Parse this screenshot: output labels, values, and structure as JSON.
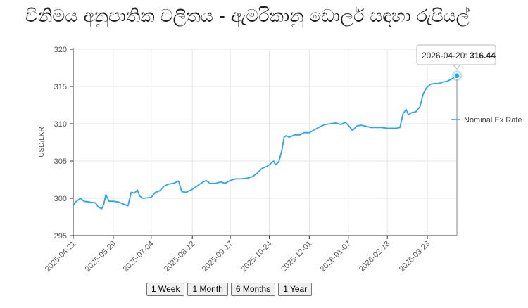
{
  "title": "විනිමය අනුපාතික චලිතය - ඇමරිකානු ඩොලර් සඳහා රුපියල්",
  "range_buttons": [
    "1 Week",
    "1 Month",
    "6 Months",
    "1 Year"
  ],
  "tooltip": {
    "date": "2026-04-20",
    "value": "316.44"
  },
  "colors": {
    "line": "#2ea3f2",
    "grid": "#e6e6e6",
    "axis": "#333333"
  },
  "chart_data": {
    "type": "line",
    "ylabel": "USD/LKR",
    "ylim": [
      295,
      320
    ],
    "yticks": [
      "295",
      "300",
      "305",
      "310",
      "315",
      "320"
    ],
    "xlim": [
      "2025-04-21",
      "2026-04-20"
    ],
    "xticks": [
      "2025-04-21",
      "2025-05-29",
      "2025-07-04",
      "2025-08-12",
      "2025-09-17",
      "2025-10-24",
      "2025-12-01",
      "2026-01-07",
      "2026-02-13",
      "2026-03-23"
    ],
    "grid": true,
    "legend_position": "right",
    "series": [
      {
        "name": "Nominal Ex Rate",
        "points": [
          [
            "2025-04-21",
            299.1
          ],
          [
            "2025-04-24",
            299.6
          ],
          [
            "2025-04-28",
            300.0
          ],
          [
            "2025-05-01",
            299.6
          ],
          [
            "2025-05-06",
            299.5
          ],
          [
            "2025-05-12",
            299.4
          ],
          [
            "2025-05-15",
            298.8
          ],
          [
            "2025-05-18",
            298.6
          ],
          [
            "2025-05-20",
            299.2
          ],
          [
            "2025-05-22",
            300.5
          ],
          [
            "2025-05-25",
            299.6
          ],
          [
            "2025-05-29",
            299.6
          ],
          [
            "2025-06-03",
            299.5
          ],
          [
            "2025-06-08",
            299.2
          ],
          [
            "2025-06-12",
            299.0
          ],
          [
            "2025-06-15",
            300.8
          ],
          [
            "2025-06-18",
            300.7
          ],
          [
            "2025-06-21",
            301.1
          ],
          [
            "2025-06-23",
            300.3
          ],
          [
            "2025-06-26",
            300.0
          ],
          [
            "2025-07-04",
            300.1
          ],
          [
            "2025-07-08",
            300.8
          ],
          [
            "2025-07-12",
            301.0
          ],
          [
            "2025-07-16",
            301.6
          ],
          [
            "2025-07-20",
            301.9
          ],
          [
            "2025-07-25",
            302.0
          ],
          [
            "2025-07-30",
            302.3
          ],
          [
            "2025-08-02",
            300.9
          ],
          [
            "2025-08-06",
            300.8
          ],
          [
            "2025-08-12",
            301.2
          ],
          [
            "2025-08-16",
            301.6
          ],
          [
            "2025-08-20",
            302.0
          ],
          [
            "2025-08-25",
            302.4
          ],
          [
            "2025-08-29",
            302.0
          ],
          [
            "2025-09-03",
            302.0
          ],
          [
            "2025-09-08",
            302.2
          ],
          [
            "2025-09-12",
            302.0
          ],
          [
            "2025-09-17",
            302.4
          ],
          [
            "2025-09-22",
            302.6
          ],
          [
            "2025-09-27",
            302.6
          ],
          [
            "2025-10-03",
            302.7
          ],
          [
            "2025-10-08",
            302.9
          ],
          [
            "2025-10-12",
            303.3
          ],
          [
            "2025-10-17",
            304.0
          ],
          [
            "2025-10-22",
            304.3
          ],
          [
            "2025-10-25",
            304.6
          ],
          [
            "2025-10-28",
            305.0
          ],
          [
            "2025-10-30",
            304.5
          ],
          [
            "2025-11-02",
            304.9
          ],
          [
            "2025-11-05",
            306.5
          ],
          [
            "2025-11-07",
            308.2
          ],
          [
            "2025-11-09",
            308.4
          ],
          [
            "2025-11-12",
            308.2
          ],
          [
            "2025-11-17",
            308.5
          ],
          [
            "2025-11-22",
            308.5
          ],
          [
            "2025-11-26",
            308.8
          ],
          [
            "2025-12-01",
            308.8
          ],
          [
            "2025-12-06",
            309.2
          ],
          [
            "2025-12-11",
            309.6
          ],
          [
            "2025-12-16",
            309.9
          ],
          [
            "2025-12-21",
            310.0
          ],
          [
            "2025-12-26",
            310.1
          ],
          [
            "2025-12-31",
            309.9
          ],
          [
            "2026-01-04",
            310.2
          ],
          [
            "2026-01-07",
            309.8
          ],
          [
            "2026-01-11",
            309.1
          ],
          [
            "2026-01-15",
            309.7
          ],
          [
            "2026-01-19",
            309.8
          ],
          [
            "2026-01-23",
            309.7
          ],
          [
            "2026-01-28",
            309.5
          ],
          [
            "2026-02-02",
            309.5
          ],
          [
            "2026-02-07",
            309.5
          ],
          [
            "2026-02-13",
            309.4
          ],
          [
            "2026-02-18",
            309.4
          ],
          [
            "2026-02-22",
            309.4
          ],
          [
            "2026-02-25",
            309.5
          ],
          [
            "2026-02-28",
            311.4
          ],
          [
            "2026-03-03",
            311.9
          ],
          [
            "2026-03-05",
            311.2
          ],
          [
            "2026-03-08",
            311.5
          ],
          [
            "2026-03-12",
            311.6
          ],
          [
            "2026-03-16",
            312.3
          ],
          [
            "2026-03-19",
            314.0
          ],
          [
            "2026-03-22",
            314.8
          ],
          [
            "2026-03-26",
            315.3
          ],
          [
            "2026-03-30",
            315.4
          ],
          [
            "2026-04-03",
            315.4
          ],
          [
            "2026-04-07",
            315.6
          ],
          [
            "2026-04-11",
            315.7
          ],
          [
            "2026-04-15",
            316.0
          ],
          [
            "2026-04-20",
            316.44
          ]
        ]
      }
    ]
  }
}
